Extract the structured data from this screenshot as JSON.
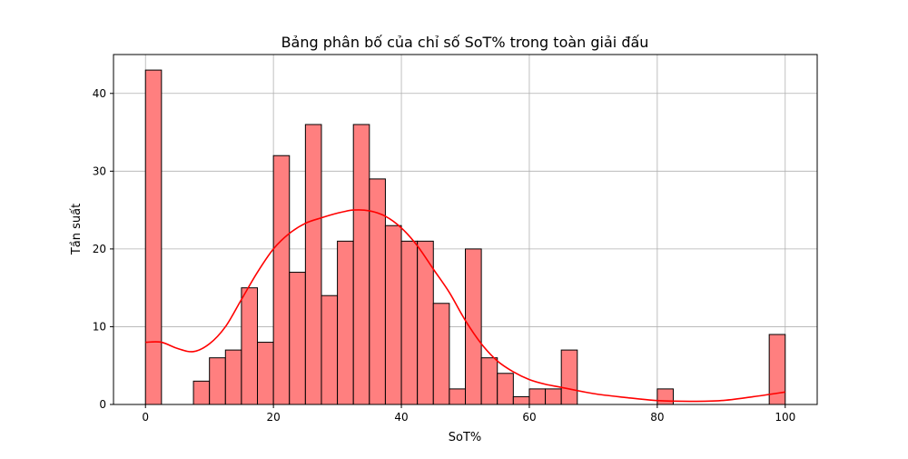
{
  "chart_data": {
    "type": "bar",
    "title": "Bảng phân bố của chỉ số SoT% trong toàn giải đấu",
    "xlabel": "SoT%",
    "ylabel": "Tần suất",
    "xlim": [
      -5,
      105
    ],
    "ylim": [
      0,
      45
    ],
    "xticks": [
      "0",
      "20",
      "40",
      "60",
      "80",
      "100"
    ],
    "yticks": [
      "0",
      "10",
      "20",
      "30",
      "40"
    ],
    "grid": true,
    "bar_color": "#ff7f7f",
    "bar_edge_color": "#000000",
    "kde_color": "#ff0000",
    "bin_width": 2.5,
    "bins": [
      {
        "start": 0,
        "count": 43
      },
      {
        "start": 2.5,
        "count": 0
      },
      {
        "start": 5,
        "count": 0
      },
      {
        "start": 7.5,
        "count": 3
      },
      {
        "start": 10,
        "count": 6
      },
      {
        "start": 12.5,
        "count": 7
      },
      {
        "start": 15,
        "count": 15
      },
      {
        "start": 17.5,
        "count": 8
      },
      {
        "start": 20,
        "count": 32
      },
      {
        "start": 22.5,
        "count": 17
      },
      {
        "start": 25,
        "count": 36
      },
      {
        "start": 27.5,
        "count": 14
      },
      {
        "start": 30,
        "count": 21
      },
      {
        "start": 32.5,
        "count": 36
      },
      {
        "start": 35,
        "count": 29
      },
      {
        "start": 37.5,
        "count": 23
      },
      {
        "start": 40,
        "count": 21
      },
      {
        "start": 42.5,
        "count": 21
      },
      {
        "start": 45,
        "count": 13
      },
      {
        "start": 47.5,
        "count": 2
      },
      {
        "start": 50,
        "count": 20
      },
      {
        "start": 52.5,
        "count": 6
      },
      {
        "start": 55,
        "count": 4
      },
      {
        "start": 57.5,
        "count": 1
      },
      {
        "start": 60,
        "count": 2
      },
      {
        "start": 62.5,
        "count": 2
      },
      {
        "start": 65,
        "count": 7
      },
      {
        "start": 67.5,
        "count": 0
      },
      {
        "start": 70,
        "count": 0
      },
      {
        "start": 72.5,
        "count": 0
      },
      {
        "start": 75,
        "count": 0
      },
      {
        "start": 77.5,
        "count": 0
      },
      {
        "start": 80,
        "count": 2
      },
      {
        "start": 82.5,
        "count": 0
      },
      {
        "start": 85,
        "count": 0
      },
      {
        "start": 87.5,
        "count": 0
      },
      {
        "start": 90,
        "count": 0
      },
      {
        "start": 92.5,
        "count": 0
      },
      {
        "start": 95,
        "count": 0
      },
      {
        "start": 97.5,
        "count": 9
      }
    ],
    "kde": {
      "x": [
        0,
        2.5,
        5,
        7.5,
        10,
        12.5,
        15,
        17.5,
        20,
        22.5,
        25,
        27.5,
        30,
        32.5,
        35,
        37.5,
        40,
        42.5,
        45,
        47.5,
        50,
        52.5,
        55,
        57.5,
        60,
        62.5,
        65,
        70,
        75,
        80,
        85,
        90,
        95,
        100
      ],
      "y": [
        8.0,
        8.0,
        7.2,
        6.8,
        7.8,
        10.0,
        13.5,
        17.0,
        20.0,
        22.0,
        23.3,
        24.0,
        24.6,
        25.0,
        24.9,
        24.2,
        22.7,
        20.4,
        17.4,
        14.4,
        10.8,
        7.8,
        5.6,
        4.2,
        3.2,
        2.6,
        2.2,
        1.4,
        0.9,
        0.5,
        0.4,
        0.5,
        1.0,
        1.6
      ]
    }
  }
}
